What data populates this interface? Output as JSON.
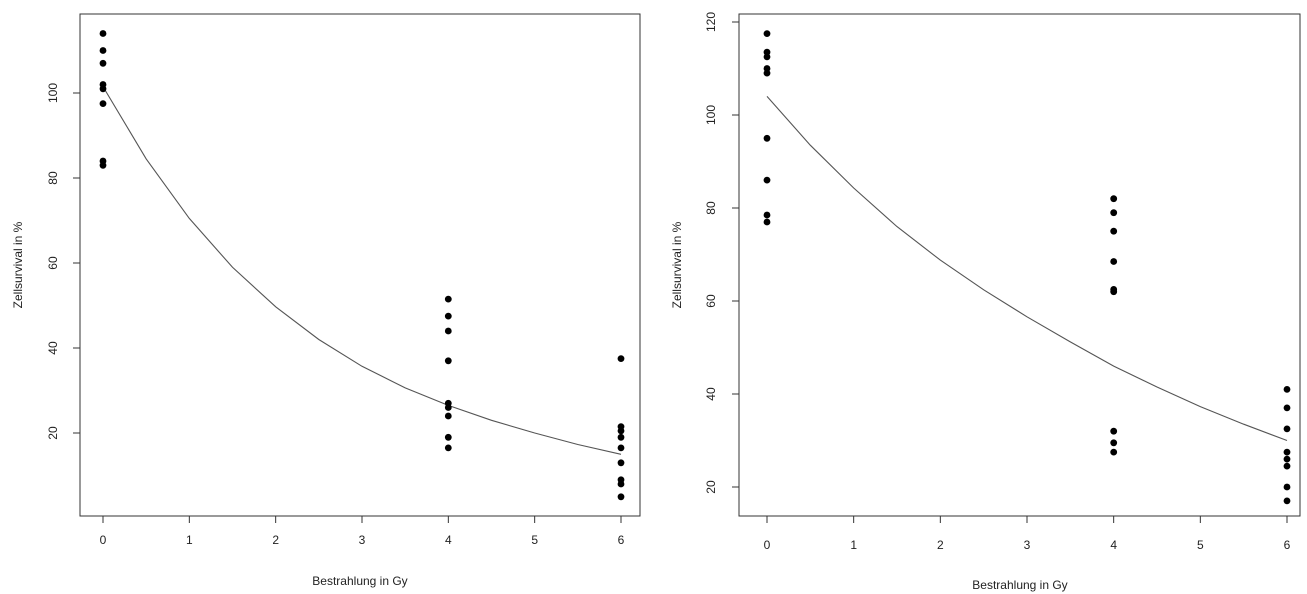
{
  "chart_data": [
    {
      "type": "scatter",
      "title": "",
      "xlabel": "Bestrahlung in Gy",
      "ylabel": "Zellsurvival in %",
      "xlim": [
        -0.2,
        6.2
      ],
      "ylim": [
        2,
        118
      ],
      "xticks": [
        0,
        1,
        2,
        3,
        4,
        5,
        6
      ],
      "yticks": [
        20,
        40,
        60,
        80,
        100
      ],
      "grid": false,
      "colors": {
        "points": "#000000",
        "curve": "#555555",
        "frame": "#333333"
      },
      "series": [
        {
          "type": "scatter",
          "points": [
            [
              0,
              114
            ],
            [
              0,
              110
            ],
            [
              0,
              107
            ],
            [
              0,
              102
            ],
            [
              0,
              101
            ],
            [
              0,
              97.5
            ],
            [
              0,
              84
            ],
            [
              0,
              83
            ],
            [
              4,
              51.5
            ],
            [
              4,
              47.5
            ],
            [
              4,
              44
            ],
            [
              4,
              37
            ],
            [
              4,
              27
            ],
            [
              4,
              26
            ],
            [
              4,
              24
            ],
            [
              4,
              19
            ],
            [
              4,
              16.5
            ],
            [
              6,
              37.5
            ],
            [
              6,
              21.5
            ],
            [
              6,
              20.5
            ],
            [
              6,
              19
            ],
            [
              6,
              16.5
            ],
            [
              6,
              13
            ],
            [
              6,
              9
            ],
            [
              6,
              8
            ],
            [
              6,
              5
            ]
          ]
        },
        {
          "type": "line",
          "points": [
            [
              0,
              101.5
            ],
            [
              0.5,
              84.5
            ],
            [
              1,
              70.5
            ],
            [
              1.5,
              59
            ],
            [
              2,
              49.7
            ],
            [
              2.5,
              42
            ],
            [
              3,
              35.7
            ],
            [
              3.5,
              30.6
            ],
            [
              4,
              26.5
            ],
            [
              4.5,
              23
            ],
            [
              5,
              20
            ],
            [
              5.5,
              17.3
            ],
            [
              6,
              15
            ]
          ]
        }
      ]
    },
    {
      "type": "scatter",
      "title": "",
      "xlabel": "Bestrahlung in Gy",
      "ylabel": "Zellsurvival in %",
      "xlim": [
        -0.2,
        6.2
      ],
      "ylim": [
        13,
        122
      ],
      "xticks": [
        0,
        1,
        2,
        3,
        4,
        5,
        6
      ],
      "yticks": [
        20,
        40,
        60,
        80,
        100,
        120
      ],
      "grid": false,
      "colors": {
        "points": "#000000",
        "curve": "#555555",
        "frame": "#333333"
      },
      "series": [
        {
          "type": "scatter",
          "points": [
            [
              0,
              117.5
            ],
            [
              0,
              113.5
            ],
            [
              0,
              112.5
            ],
            [
              0,
              110
            ],
            [
              0,
              109
            ],
            [
              0,
              95
            ],
            [
              0,
              86
            ],
            [
              0,
              78.5
            ],
            [
              0,
              77
            ],
            [
              4,
              82
            ],
            [
              4,
              79
            ],
            [
              4,
              75
            ],
            [
              4,
              68.5
            ],
            [
              4,
              62.5
            ],
            [
              4,
              62
            ],
            [
              4,
              32
            ],
            [
              4,
              29.5
            ],
            [
              4,
              27.5
            ],
            [
              6,
              41
            ],
            [
              6,
              37
            ],
            [
              6,
              32.5
            ],
            [
              6,
              27.5
            ],
            [
              6,
              26
            ],
            [
              6,
              24.5
            ],
            [
              6,
              20
            ],
            [
              6,
              17
            ]
          ]
        },
        {
          "type": "line",
          "points": [
            [
              0,
              104
            ],
            [
              0.5,
              93.5
            ],
            [
              1,
              84.3
            ],
            [
              1.5,
              76
            ],
            [
              2,
              68.8
            ],
            [
              2.5,
              62.4
            ],
            [
              3,
              56.6
            ],
            [
              3.5,
              51.2
            ],
            [
              4,
              46
            ],
            [
              4.5,
              41.5
            ],
            [
              5,
              37.3
            ],
            [
              5.5,
              33.5
            ],
            [
              6,
              30
            ]
          ]
        }
      ]
    }
  ]
}
